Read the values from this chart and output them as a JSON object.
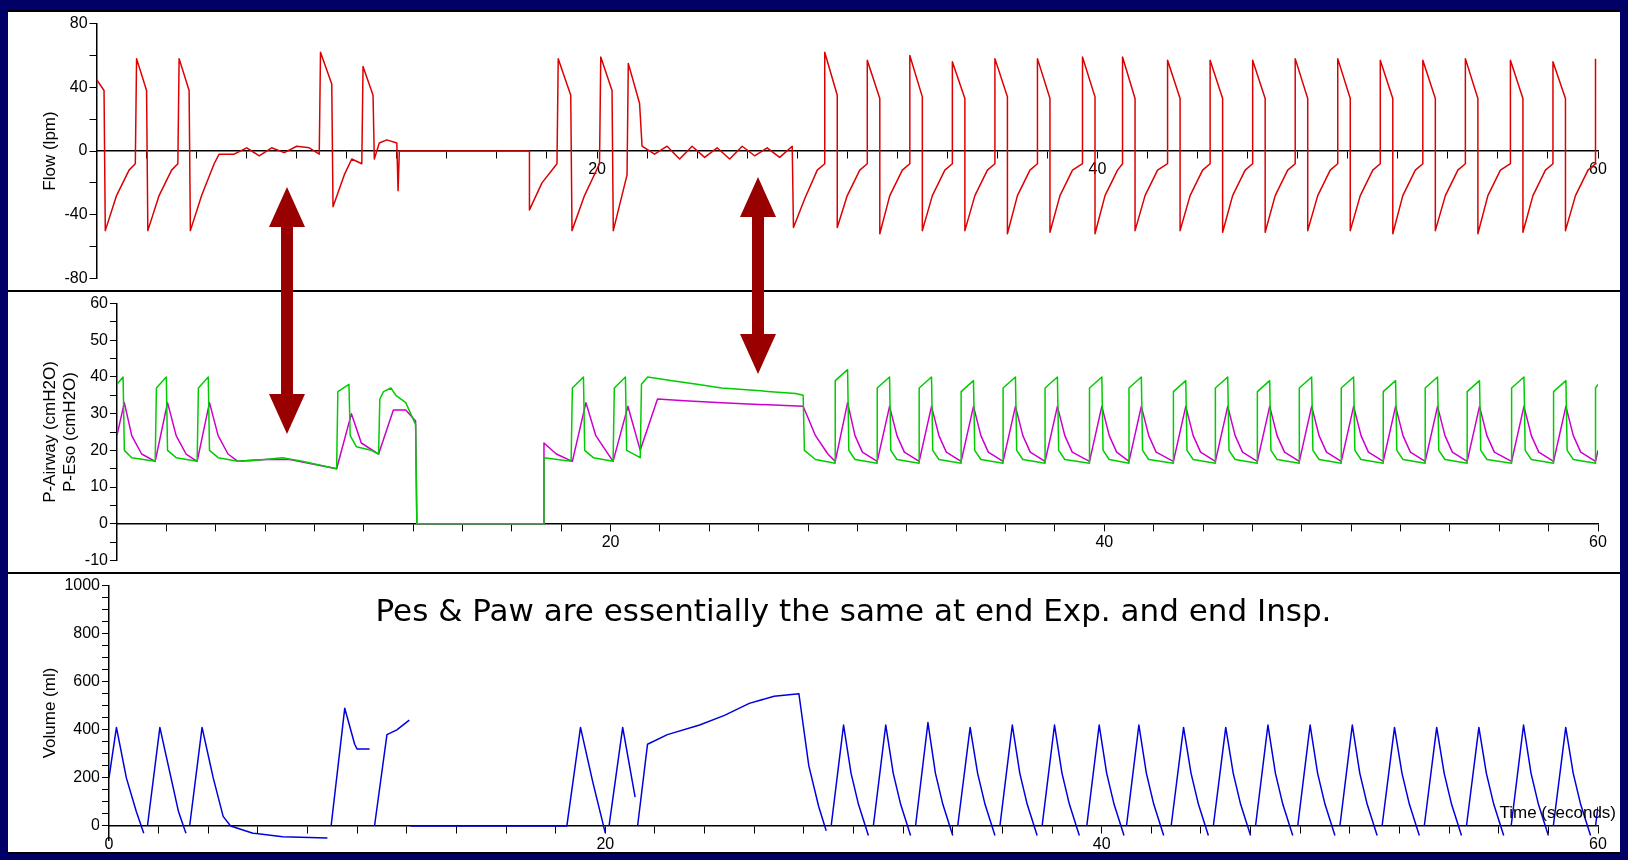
{
  "chart_data": [
    {
      "type": "line",
      "ylabel": "Flow (lpm)",
      "xlim": [
        0,
        60
      ],
      "ylim": [
        -80,
        80
      ],
      "yticks": [
        -80,
        {
          "value": -60,
          "label": null
        },
        -40,
        {
          "value": -20,
          "label": null
        },
        0,
        {
          "value": 20,
          "label": null
        },
        40,
        {
          "value": 60,
          "label": null
        },
        80
      ],
      "xticks": [
        {
          "value": 0,
          "label": null
        },
        {
          "value": 2,
          "label": null
        },
        {
          "value": 4,
          "label": null
        },
        {
          "value": 6,
          "label": null
        },
        {
          "value": 8,
          "label": null
        },
        {
          "value": 10,
          "label": null
        },
        {
          "value": 12,
          "label": null
        },
        {
          "value": 14,
          "label": null
        },
        {
          "value": 16,
          "label": null
        },
        {
          "value": 18,
          "label": null
        },
        20,
        {
          "value": 22,
          "label": null
        },
        {
          "value": 24,
          "label": null
        },
        {
          "value": 26,
          "label": null
        },
        {
          "value": 28,
          "label": null
        },
        {
          "value": 30,
          "label": null
        },
        {
          "value": 32,
          "label": null
        },
        {
          "value": 34,
          "label": null
        },
        {
          "value": 36,
          "label": null
        },
        {
          "value": 38,
          "label": null
        },
        40,
        {
          "value": 42,
          "label": null
        },
        {
          "value": 44,
          "label": null
        },
        {
          "value": 46,
          "label": null
        },
        {
          "value": 48,
          "label": null
        },
        {
          "value": 50,
          "label": null
        },
        {
          "value": 52,
          "label": null
        },
        {
          "value": 54,
          "label": null
        },
        {
          "value": 56,
          "label": null
        },
        {
          "value": 58,
          "label": null
        },
        60
      ],
      "grid": false,
      "legend": false,
      "marker": "none",
      "line_style": "solid",
      "series": [
        {
          "color": "#dd0000",
          "x": [
            0,
            0.3,
            0.35,
            0.8,
            1.3,
            1.55,
            1.6,
            2.0,
            2.05,
            2.5,
            3.0,
            3.25,
            3.3,
            3.7,
            3.75,
            4.2,
            4.7,
            4.9,
            5.5,
            6,
            6.5,
            7,
            7.5,
            8,
            8.5,
            8.9,
            8.95,
            9.4,
            9.45,
            9.9,
            10.2,
            10.6,
            10.65,
            11.05,
            11.1,
            11.3,
            11.6,
            12.0,
            12.05,
            12.1,
            17.3,
            17.3,
            17.8,
            18.4,
            18.45,
            18.95,
            19.0,
            19.5,
            20.1,
            20.15,
            20.6,
            20.65,
            21.2,
            21.25,
            21.7,
            21.8,
            22.3,
            22.8,
            23.3,
            23.8,
            24.3,
            24.8,
            25.3,
            25.8,
            26.3,
            26.8,
            27.3,
            27.8,
            27.85,
            28.3,
            28.8,
            29.1,
            29.1,
            29.6,
            29.6,
            30.0,
            30.5,
            30.8,
            30.8,
            31.3,
            31.3,
            31.7,
            32.2,
            32.5,
            32.5,
            33.0,
            33.0,
            33.4,
            33.9,
            34.2,
            34.2,
            34.7,
            34.7,
            35.1,
            35.6,
            35.9,
            35.9,
            36.4,
            36.4,
            36.8,
            37.3,
            37.6,
            37.6,
            38.1,
            38.1,
            38.5,
            39.0,
            39.4,
            39.4,
            39.9,
            39.9,
            40.3,
            40.8,
            41.0,
            41.0,
            41.5,
            41.5,
            41.9,
            42.4,
            42.8,
            42.8,
            43.3,
            43.3,
            43.7,
            44.2,
            44.5,
            44.5,
            45.0,
            45.0,
            45.4,
            45.9,
            46.2,
            46.2,
            46.7,
            46.7,
            47.1,
            47.6,
            47.9,
            47.9,
            48.4,
            48.4,
            48.8,
            49.3,
            49.6,
            49.6,
            50.1,
            50.1,
            50.5,
            51.0,
            51.3,
            51.3,
            51.8,
            51.8,
            52.2,
            52.7,
            53.0,
            53.0,
            53.5,
            53.5,
            53.9,
            54.4,
            54.7,
            54.7,
            55.2,
            55.2,
            55.6,
            56.1,
            56.5,
            56.5,
            57.0,
            57.0,
            57.4,
            57.9,
            58.2,
            58.2,
            58.7,
            58.7,
            59.1,
            59.6,
            59.9,
            59.9
          ],
          "values": [
            45,
            38,
            -50,
            -28,
            -12,
            -8,
            58,
            38,
            -50,
            -28,
            -12,
            -8,
            58,
            38,
            -50,
            -28,
            -8,
            -2,
            -2,
            2,
            -3,
            2,
            -1,
            3,
            2,
            -2,
            62,
            42,
            -35,
            -15,
            -5,
            -8,
            53,
            35,
            -5,
            5,
            7,
            5,
            -25,
            0,
            0,
            -37,
            -20,
            -8,
            58,
            35,
            -50,
            -28,
            -8,
            59,
            38,
            -50,
            -15,
            55,
            30,
            3,
            -2,
            3,
            -5,
            3,
            -4,
            2,
            -5,
            3,
            -3,
            2,
            -4,
            3,
            -48,
            -30,
            -12,
            -8,
            62,
            35,
            -48,
            -28,
            -12,
            -8,
            57,
            33,
            -52,
            -28,
            -12,
            -8,
            60,
            34,
            -50,
            -28,
            -12,
            -8,
            56,
            33,
            -50,
            -28,
            -12,
            -8,
            58,
            34,
            -52,
            -28,
            -12,
            -8,
            58,
            33,
            -51,
            -28,
            -12,
            -8,
            59,
            34,
            -52,
            -28,
            -12,
            -8,
            59,
            33,
            -50,
            -28,
            -12,
            -8,
            57,
            33,
            -50,
            -28,
            -12,
            -8,
            57,
            33,
            -51,
            -28,
            -12,
            -8,
            57,
            33,
            -51,
            -28,
            -12,
            -8,
            58,
            33,
            -50,
            -28,
            -12,
            -8,
            58,
            33,
            -50,
            -28,
            -12,
            -8,
            57,
            33,
            -52,
            -28,
            -12,
            -8,
            57,
            33,
            -50,
            -28,
            -12,
            -8,
            58,
            33,
            -52,
            -28,
            -12,
            -8,
            57,
            33,
            -51,
            -28,
            -12,
            -8,
            56,
            33,
            -50,
            -28,
            -12,
            -8,
            58
          ]
        }
      ]
    },
    {
      "type": "line",
      "ylabel": "P-Airway (cmH2O)\nP-Eso (cmH2O)",
      "xlim": [
        0,
        60
      ],
      "ylim": [
        -10,
        60
      ],
      "yticks": [
        -10,
        {
          "value": -5,
          "label": null
        },
        0,
        {
          "value": 5,
          "label": null
        },
        10,
        {
          "value": 15,
          "label": null
        },
        20,
        {
          "value": 25,
          "label": null
        },
        30,
        {
          "value": 35,
          "label": null
        },
        40,
        {
          "value": 45,
          "label": null
        },
        50,
        {
          "value": 55,
          "label": null
        },
        60
      ],
      "xticks": [
        {
          "value": 0,
          "label": null
        },
        {
          "value": 2,
          "label": null
        },
        {
          "value": 4,
          "label": null
        },
        {
          "value": 6,
          "label": null
        },
        {
          "value": 8,
          "label": null
        },
        {
          "value": 10,
          "label": null
        },
        {
          "value": 12,
          "label": null
        },
        {
          "value": 14,
          "label": null
        },
        {
          "value": 16,
          "label": null
        },
        {
          "value": 18,
          "label": null
        },
        20,
        {
          "value": 22,
          "label": null
        },
        {
          "value": 24,
          "label": null
        },
        {
          "value": 26,
          "label": null
        },
        {
          "value": 28,
          "label": null
        },
        {
          "value": 30,
          "label": null
        },
        {
          "value": 32,
          "label": null
        },
        {
          "value": 34,
          "label": null
        },
        {
          "value": 36,
          "label": null
        },
        {
          "value": 38,
          "label": null
        },
        40,
        {
          "value": 42,
          "label": null
        },
        {
          "value": 44,
          "label": null
        },
        {
          "value": 46,
          "label": null
        },
        {
          "value": 48,
          "label": null
        },
        {
          "value": 50,
          "label": null
        },
        {
          "value": 52,
          "label": null
        },
        {
          "value": 54,
          "label": null
        },
        {
          "value": 56,
          "label": null
        },
        {
          "value": 58,
          "label": null
        },
        60
      ],
      "grid": false,
      "legend": false,
      "marker": "none",
      "line_style": "solid",
      "series": [
        {
          "color": "#00cc00",
          "x": [
            0,
            0.25,
            0.3,
            0.6,
            1.55,
            1.6,
            2.0,
            2.05,
            2.4,
            3.25,
            3.3,
            3.7,
            3.75,
            4.1,
            4.9,
            6,
            6.7,
            7.5,
            8.9,
            8.95,
            9.4,
            9.45,
            9.7,
            10.3,
            10.6,
            10.65,
            10.8,
            11.1,
            11.3,
            11.7,
            12.1,
            12.15,
            17.3,
            17.3,
            18.4,
            18.45,
            18.9,
            18.95,
            19.3,
            20.1,
            20.15,
            20.6,
            20.65,
            21.2,
            21.25,
            21.5,
            22.5,
            23.5,
            24.5,
            25.5,
            26.5,
            27.5,
            27.8,
            27.85,
            28.3,
            29.1,
            29.1,
            29.6,
            29.65,
            29.9,
            30.8,
            30.8,
            31.3,
            31.35,
            31.6,
            32.5,
            32.5,
            33.0,
            33.05,
            33.3,
            34.2,
            34.2,
            34.7,
            34.75,
            35.0,
            35.9,
            35.9,
            36.4,
            36.45,
            36.7,
            37.6,
            37.6,
            38.1,
            38.15,
            38.4,
            39.4,
            39.4,
            39.9,
            39.95,
            40.2,
            41.0,
            41.0,
            41.5,
            41.55,
            41.8,
            42.8,
            42.8,
            43.3,
            43.35,
            43.6,
            44.5,
            44.5,
            45.0,
            45.05,
            45.3,
            46.2,
            46.2,
            46.7,
            46.75,
            47.0,
            47.9,
            47.9,
            48.4,
            48.45,
            48.7,
            49.6,
            49.6,
            50.1,
            50.15,
            50.4,
            51.3,
            51.3,
            51.8,
            51.85,
            52.1,
            53.0,
            53.0,
            53.5,
            53.55,
            53.8,
            54.7,
            54.7,
            55.2,
            55.25,
            55.5,
            56.5,
            56.5,
            57.0,
            57.05,
            57.3,
            58.2,
            58.2,
            58.7,
            58.75,
            59.0,
            59.9,
            59.9,
            60
          ],
          "values": [
            38,
            40,
            20,
            18,
            17,
            37,
            40,
            20,
            18,
            17,
            37,
            40,
            20,
            18,
            17,
            17.5,
            18,
            17,
            15,
            36,
            38,
            24,
            21,
            20,
            19,
            34,
            36,
            37,
            35,
            33,
            27,
            0,
            0,
            18,
            17,
            37,
            40,
            20,
            18,
            17,
            37,
            40,
            20,
            18,
            38,
            40,
            39,
            38,
            37,
            36.5,
            36,
            35.5,
            35,
            20,
            17.5,
            16.5,
            39,
            42,
            20,
            17.5,
            16.5,
            37,
            40,
            20,
            17.5,
            16.5,
            37,
            40,
            20,
            17.5,
            16.5,
            36,
            39,
            20,
            17.5,
            16.5,
            37,
            40,
            20,
            17.5,
            16.5,
            37,
            40,
            20,
            17.5,
            16.5,
            37,
            40,
            20,
            17.5,
            16.5,
            37,
            40,
            20,
            17.5,
            16.5,
            36,
            39,
            20,
            17.5,
            16.5,
            37,
            40,
            20,
            17.5,
            16.5,
            36,
            39,
            20,
            17.5,
            16.5,
            37,
            40,
            20,
            17.5,
            16.5,
            37,
            40,
            20,
            17.5,
            16.5,
            36,
            39,
            20,
            17.5,
            16.5,
            37,
            40,
            20,
            17.5,
            16.5,
            36,
            39,
            20,
            17.5,
            16.5,
            37,
            40,
            20,
            17.5,
            16.5,
            36,
            39,
            20,
            17.5,
            16.5,
            37,
            38
          ]
        },
        {
          "color": "#cc00cc",
          "x": [
            0,
            0.3,
            0.6,
            1.0,
            1.55,
            2.05,
            2.4,
            2.8,
            3.25,
            3.75,
            4.1,
            4.5,
            4.9,
            6,
            7,
            8.9,
            9.5,
            9.9,
            10.6,
            11.2,
            11.7,
            12.1,
            12.15,
            17.3,
            17.3,
            17.8,
            18.45,
            19.0,
            19.4,
            20.1,
            20.7,
            21.2,
            21.9,
            23,
            24.5,
            26,
            27.8,
            28.3,
            28.8,
            29.1,
            29.6,
            29.9,
            30.2,
            30.8,
            31.3,
            31.6,
            31.9,
            32.5,
            33.0,
            33.3,
            33.6,
            34.2,
            34.7,
            35.0,
            35.3,
            35.9,
            36.4,
            36.7,
            37.0,
            37.6,
            38.1,
            38.4,
            38.7,
            39.4,
            39.9,
            40.2,
            40.5,
            41.0,
            41.5,
            41.8,
            42.1,
            42.8,
            43.3,
            43.6,
            43.9,
            44.5,
            45.0,
            45.3,
            45.6,
            46.2,
            46.7,
            47.0,
            47.3,
            47.9,
            48.4,
            48.7,
            49.0,
            49.6,
            50.1,
            50.4,
            50.7,
            51.3,
            51.8,
            52.1,
            52.4,
            53.0,
            53.5,
            53.8,
            54.1,
            54.7,
            55.2,
            55.5,
            55.8,
            56.5,
            57.0,
            57.3,
            57.6,
            58.2,
            58.7,
            59.0,
            59.3,
            59.9,
            60
          ],
          "values": [
            24,
            33,
            24,
            19,
            17,
            33,
            24,
            19,
            17,
            33,
            24,
            19,
            17,
            17.5,
            17.5,
            15,
            30,
            22,
            19,
            31,
            31,
            28,
            0,
            0,
            22,
            19,
            17,
            33,
            24,
            17,
            32,
            20,
            34,
            33.5,
            33,
            32.5,
            32,
            24,
            19,
            17,
            33,
            24,
            19.5,
            17,
            32,
            24,
            19.5,
            17,
            32,
            24,
            19.5,
            17,
            32,
            24,
            19.5,
            17,
            32,
            24,
            19.5,
            17,
            32,
            24,
            19.5,
            17,
            32,
            24,
            19.5,
            17,
            32,
            24,
            19.5,
            17,
            32,
            24,
            19.5,
            17,
            32,
            24,
            19.5,
            17,
            32,
            24,
            19.5,
            17,
            32,
            24,
            19.5,
            17,
            32,
            24,
            19.5,
            17,
            32,
            24,
            19.5,
            17,
            32,
            24,
            19.5,
            17,
            32,
            24,
            19.5,
            17,
            32,
            24,
            19.5,
            17,
            32,
            24,
            19.5,
            17,
            20
          ]
        }
      ]
    },
    {
      "type": "line",
      "ylabel": "Volume (ml)",
      "xlabel": "Time (seconds)",
      "xlim": [
        0,
        60
      ],
      "ylim": [
        -60,
        1000
      ],
      "yticks": [
        0,
        {
          "value": 50,
          "label": null
        },
        {
          "value": 100,
          "label": null
        },
        {
          "value": 150,
          "label": null
        },
        200,
        {
          "value": 250,
          "label": null
        },
        {
          "value": 300,
          "label": null
        },
        {
          "value": 350,
          "label": null
        },
        400,
        {
          "value": 450,
          "label": null
        },
        {
          "value": 500,
          "label": null
        },
        {
          "value": 550,
          "label": null
        },
        600,
        {
          "value": 650,
          "label": null
        },
        {
          "value": 700,
          "label": null
        },
        {
          "value": 750,
          "label": null
        },
        800,
        {
          "value": 850,
          "label": null
        },
        {
          "value": 900,
          "label": null
        },
        {
          "value": 950,
          "label": null
        },
        1000
      ],
      "xticks": [
        0,
        {
          "value": 2,
          "label": null
        },
        {
          "value": 4,
          "label": null
        },
        {
          "value": 6,
          "label": null
        },
        {
          "value": 8,
          "label": null
        },
        {
          "value": 10,
          "label": null
        },
        {
          "value": 12,
          "label": null
        },
        {
          "value": 14,
          "label": null
        },
        {
          "value": 16,
          "label": null
        },
        {
          "value": 18,
          "label": null
        },
        20,
        {
          "value": 22,
          "label": null
        },
        {
          "value": 24,
          "label": null
        },
        {
          "value": 26,
          "label": null
        },
        {
          "value": 28,
          "label": null
        },
        {
          "value": 30,
          "label": null
        },
        {
          "value": 32,
          "label": null
        },
        {
          "value": 34,
          "label": null
        },
        {
          "value": 36,
          "label": null
        },
        {
          "value": 38,
          "label": null
        },
        40,
        {
          "value": 42,
          "label": null
        },
        {
          "value": 44,
          "label": null
        },
        {
          "value": 46,
          "label": null
        },
        {
          "value": 48,
          "label": null
        },
        {
          "value": 50,
          "label": null
        },
        {
          "value": 52,
          "label": null
        },
        {
          "value": 54,
          "label": null
        },
        {
          "value": 56,
          "label": null
        },
        {
          "value": 58,
          "label": null
        },
        60
      ],
      "grid": false,
      "legend": false,
      "marker": "none",
      "line_style": "solid",
      "annotations": [
        "Pes & Paw are essentially the same at end Exp. and end Insp."
      ],
      "series": [
        {
          "color": "#0000dd",
          "x": [
            0,
            0.3,
            0.7,
            1.1,
            1.4,
            1.45,
            1.55,
            2.05,
            2.5,
            2.8,
            3.1,
            3.15,
            3.25,
            3.75,
            4.2,
            4.6,
            4.9,
            5.8,
            7,
            8.8,
            8.85,
            8.95,
            9.5,
            9.9,
            10.0,
            10.5,
            10.55,
            10.7,
            11.2,
            11.6,
            12.1,
            12.12,
            12.15,
            18.45,
            19.0,
            19.5,
            20.0,
            20.05,
            20.15,
            20.7,
            21.2,
            21.25,
            21.3,
            21.7,
            22.5,
            23.8,
            24.8,
            25.8,
            26.8,
            27.8,
            28.2,
            28.6,
            28.9,
            28.95,
            29.1,
            29.6,
            29.9,
            30.2,
            30.6,
            30.65,
            30.8,
            31.3,
            31.6,
            31.9,
            32.3,
            32.35,
            32.5,
            33.0,
            33.3,
            33.6,
            34.0,
            34.05,
            34.2,
            34.7,
            35.0,
            35.3,
            35.7,
            35.75,
            35.9,
            36.4,
            36.7,
            37.0,
            37.4,
            37.45,
            37.6,
            38.1,
            38.4,
            38.7,
            39.1,
            39.15,
            39.4,
            39.9,
            40.2,
            40.5,
            40.9,
            40.95,
            41.0,
            41.5,
            41.8,
            42.1,
            42.5,
            42.55,
            42.8,
            43.3,
            43.6,
            43.9,
            44.3,
            44.35,
            44.5,
            45.0,
            45.3,
            45.6,
            46.0,
            46.05,
            46.2,
            46.7,
            47.0,
            47.3,
            47.7,
            47.75,
            47.9,
            48.4,
            48.7,
            49.0,
            49.4,
            49.45,
            49.6,
            50.1,
            50.4,
            50.7,
            51.1,
            51.15,
            51.3,
            51.8,
            52.1,
            52.4,
            52.8,
            52.85,
            53.0,
            53.5,
            53.8,
            54.1,
            54.5,
            54.55,
            54.7,
            55.2,
            55.5,
            55.8,
            56.2,
            56.25,
            56.5,
            57.0,
            57.3,
            57.6,
            58.0,
            58.05,
            58.2,
            58.7,
            59.0,
            59.3,
            59.7,
            59.75,
            59.9,
            60
          ],
          "values": [
            200,
            410,
            200,
            60,
            -30,
            null,
            0,
            410,
            200,
            60,
            -30,
            null,
            0,
            410,
            200,
            40,
            0,
            -30,
            -45,
            -50,
            null,
            0,
            490,
            340,
            320,
            320,
            null,
            0,
            380,
            400,
            440,
            null,
            0,
            0,
            410,
            180,
            -30,
            null,
            0,
            410,
            120,
            null,
            0,
            340,
            380,
            420,
            460,
            510,
            540,
            550,
            250,
            80,
            -20,
            null,
            0,
            420,
            220,
            90,
            -40,
            null,
            0,
            420,
            220,
            90,
            -40,
            null,
            0,
            430,
            220,
            90,
            -40,
            null,
            0,
            410,
            220,
            90,
            -40,
            null,
            0,
            420,
            220,
            90,
            -40,
            null,
            0,
            420,
            220,
            90,
            -40,
            null,
            0,
            420,
            220,
            90,
            -40,
            null,
            0,
            420,
            220,
            90,
            -40,
            null,
            0,
            410,
            220,
            90,
            -40,
            null,
            0,
            410,
            220,
            90,
            -40,
            null,
            0,
            420,
            220,
            90,
            -40,
            null,
            0,
            420,
            220,
            90,
            -40,
            null,
            0,
            420,
            220,
            90,
            -40,
            null,
            0,
            410,
            220,
            90,
            -40,
            null,
            0,
            410,
            220,
            90,
            -40,
            null,
            0,
            410,
            220,
            90,
            -40,
            null,
            0,
            420,
            220,
            90,
            -40,
            null,
            0,
            410,
            220,
            90,
            -40,
            null,
            0,
            80
          ]
        }
      ]
    }
  ]
}
